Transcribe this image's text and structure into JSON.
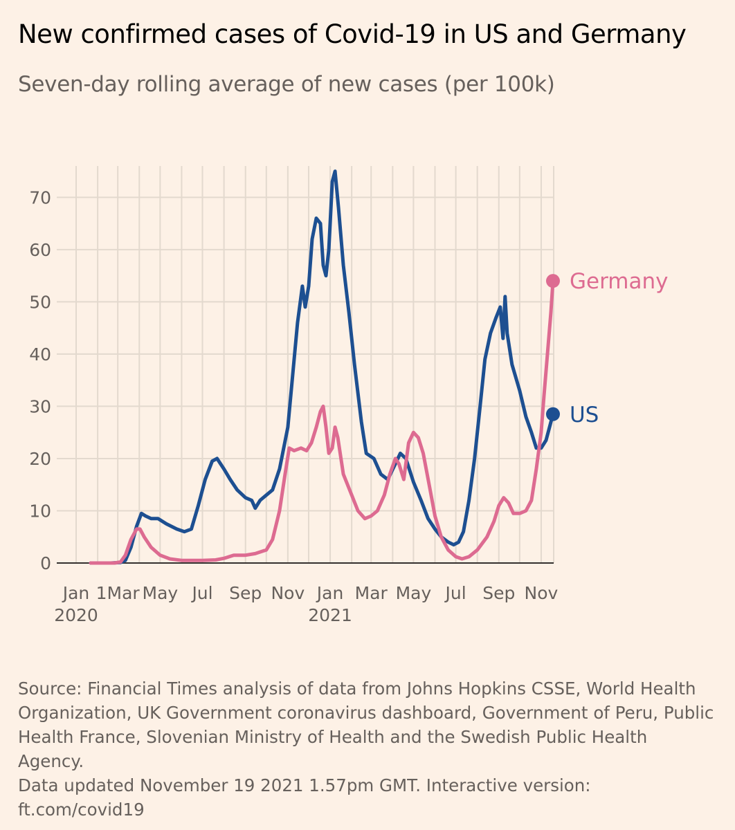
{
  "title": "New confirmed cases of Covid-19 in US and Germany",
  "subtitle": "Seven-day rolling average of new cases (per 100k)",
  "source": "Source: Financial Times analysis of data from Johns Hopkins CSSE, World Health Organization, UK Government coronavirus dashboard, Government of Peru, Public Health France, Slovenian Ministry of Health and the Swedish Public Health Agency.",
  "updated": "Data updated November 19 2021 1.57pm GMT. Interactive version: ft.com/covid19",
  "colors": {
    "background": "#fdf1e6",
    "us": "#1d4f91",
    "germany": "#dd6b91",
    "grid": "#e3d9ce",
    "axis": "#33302e",
    "text": "#66605c"
  },
  "chart_data": {
    "type": "line",
    "title": "New confirmed cases of Covid-19 in US and Germany",
    "subtitle": "Seven-day rolling average of new cases (per 100k)",
    "x_type": "date",
    "xlim": [
      "2020-01-01",
      "2021-11-19"
    ],
    "ylim": [
      0,
      76
    ],
    "y_ticks": [
      0,
      10,
      20,
      30,
      40,
      50,
      60,
      70
    ],
    "x_ticks": [
      {
        "date": "2020-01-01",
        "label": "Jan",
        "sublabel": "2020"
      },
      {
        "date": "2020-03-01",
        "label": "1Mar"
      },
      {
        "date": "2020-05-01",
        "label": "May"
      },
      {
        "date": "2020-07-01",
        "label": "Jul"
      },
      {
        "date": "2020-09-01",
        "label": "Sep"
      },
      {
        "date": "2020-11-01",
        "label": "Nov"
      },
      {
        "date": "2021-01-01",
        "label": "Jan",
        "sublabel": "2021"
      },
      {
        "date": "2021-03-01",
        "label": "Mar"
      },
      {
        "date": "2021-05-01",
        "label": "May"
      },
      {
        "date": "2021-07-01",
        "label": "Jul"
      },
      {
        "date": "2021-09-01",
        "label": "Sep"
      },
      {
        "date": "2021-11-01",
        "label": "Nov"
      }
    ],
    "grid": true,
    "series": [
      {
        "name": "US",
        "color": "#1d4f91",
        "points": [
          [
            "2020-01-22",
            0
          ],
          [
            "2020-02-20",
            0
          ],
          [
            "2020-03-05",
            0.1
          ],
          [
            "2020-03-12",
            0.5
          ],
          [
            "2020-03-20",
            3
          ],
          [
            "2020-03-28",
            7
          ],
          [
            "2020-04-04",
            9.5
          ],
          [
            "2020-04-10",
            9
          ],
          [
            "2020-04-18",
            8.5
          ],
          [
            "2020-04-28",
            8.5
          ],
          [
            "2020-05-10",
            7.5
          ],
          [
            "2020-05-25",
            6.5
          ],
          [
            "2020-06-05",
            6
          ],
          [
            "2020-06-15",
            6.5
          ],
          [
            "2020-06-25",
            11
          ],
          [
            "2020-07-05",
            16
          ],
          [
            "2020-07-15",
            19.5
          ],
          [
            "2020-07-22",
            20
          ],
          [
            "2020-08-01",
            18
          ],
          [
            "2020-08-10",
            16
          ],
          [
            "2020-08-20",
            14
          ],
          [
            "2020-09-01",
            12.5
          ],
          [
            "2020-09-10",
            12
          ],
          [
            "2020-09-15",
            10.5
          ],
          [
            "2020-09-22",
            12
          ],
          [
            "2020-10-01",
            13
          ],
          [
            "2020-10-10",
            14
          ],
          [
            "2020-10-20",
            18
          ],
          [
            "2020-11-01",
            26
          ],
          [
            "2020-11-08",
            36
          ],
          [
            "2020-11-15",
            46
          ],
          [
            "2020-11-22",
            53
          ],
          [
            "2020-11-26",
            49
          ],
          [
            "2020-12-01",
            53
          ],
          [
            "2020-12-06",
            62
          ],
          [
            "2020-12-12",
            66
          ],
          [
            "2020-12-18",
            65
          ],
          [
            "2020-12-22",
            57
          ],
          [
            "2020-12-26",
            55
          ],
          [
            "2020-12-30",
            60
          ],
          [
            "2021-01-04",
            73
          ],
          [
            "2021-01-08",
            75
          ],
          [
            "2021-01-13",
            68
          ],
          [
            "2021-01-20",
            57
          ],
          [
            "2021-01-28",
            48
          ],
          [
            "2021-02-05",
            38
          ],
          [
            "2021-02-15",
            27
          ],
          [
            "2021-02-22",
            21
          ],
          [
            "2021-03-05",
            20
          ],
          [
            "2021-03-15",
            17
          ],
          [
            "2021-03-25",
            16
          ],
          [
            "2021-04-05",
            19
          ],
          [
            "2021-04-12",
            21
          ],
          [
            "2021-04-20",
            20
          ],
          [
            "2021-05-01",
            15.5
          ],
          [
            "2021-05-12",
            12
          ],
          [
            "2021-05-22",
            8.5
          ],
          [
            "2021-06-01",
            6.5
          ],
          [
            "2021-06-10",
            5
          ],
          [
            "2021-06-20",
            4
          ],
          [
            "2021-06-28",
            3.5
          ],
          [
            "2021-07-05",
            4
          ],
          [
            "2021-07-12",
            6
          ],
          [
            "2021-07-20",
            12
          ],
          [
            "2021-07-28",
            20
          ],
          [
            "2021-08-05",
            30
          ],
          [
            "2021-08-12",
            39
          ],
          [
            "2021-08-20",
            44
          ],
          [
            "2021-08-28",
            47
          ],
          [
            "2021-09-03",
            49
          ],
          [
            "2021-09-07",
            43
          ],
          [
            "2021-09-10",
            51
          ],
          [
            "2021-09-13",
            44
          ],
          [
            "2021-09-20",
            38
          ],
          [
            "2021-10-01",
            33
          ],
          [
            "2021-10-10",
            28
          ],
          [
            "2021-10-18",
            25
          ],
          [
            "2021-10-25",
            22
          ],
          [
            "2021-11-01",
            22
          ],
          [
            "2021-11-08",
            23.5
          ],
          [
            "2021-11-18",
            28.5
          ]
        ]
      },
      {
        "name": "Germany",
        "color": "#dd6b91",
        "points": [
          [
            "2020-01-22",
            0
          ],
          [
            "2020-02-25",
            0
          ],
          [
            "2020-03-05",
            0.2
          ],
          [
            "2020-03-12",
            1.5
          ],
          [
            "2020-03-20",
            4.5
          ],
          [
            "2020-03-28",
            6.5
          ],
          [
            "2020-04-02",
            6.5
          ],
          [
            "2020-04-08",
            5
          ],
          [
            "2020-04-18",
            3
          ],
          [
            "2020-05-01",
            1.5
          ],
          [
            "2020-05-15",
            0.8
          ],
          [
            "2020-06-01",
            0.5
          ],
          [
            "2020-06-15",
            0.5
          ],
          [
            "2020-07-01",
            0.5
          ],
          [
            "2020-07-20",
            0.6
          ],
          [
            "2020-08-01",
            0.9
          ],
          [
            "2020-08-15",
            1.5
          ],
          [
            "2020-09-01",
            1.5
          ],
          [
            "2020-09-15",
            1.8
          ],
          [
            "2020-10-01",
            2.5
          ],
          [
            "2020-10-10",
            4.5
          ],
          [
            "2020-10-20",
            10
          ],
          [
            "2020-10-28",
            17
          ],
          [
            "2020-11-03",
            22
          ],
          [
            "2020-11-10",
            21.5
          ],
          [
            "2020-11-20",
            22
          ],
          [
            "2020-11-28",
            21.5
          ],
          [
            "2020-12-05",
            23
          ],
          [
            "2020-12-12",
            26
          ],
          [
            "2020-12-18",
            29
          ],
          [
            "2020-12-22",
            30
          ],
          [
            "2020-12-26",
            26
          ],
          [
            "2020-12-30",
            21
          ],
          [
            "2021-01-04",
            22
          ],
          [
            "2021-01-08",
            26
          ],
          [
            "2021-01-12",
            24
          ],
          [
            "2021-01-20",
            17
          ],
          [
            "2021-02-01",
            13
          ],
          [
            "2021-02-10",
            10
          ],
          [
            "2021-02-20",
            8.5
          ],
          [
            "2021-03-01",
            9
          ],
          [
            "2021-03-10",
            10
          ],
          [
            "2021-03-20",
            13
          ],
          [
            "2021-03-28",
            17
          ],
          [
            "2021-04-05",
            20
          ],
          [
            "2021-04-10",
            19
          ],
          [
            "2021-04-17",
            16
          ],
          [
            "2021-04-24",
            23
          ],
          [
            "2021-05-01",
            25
          ],
          [
            "2021-05-08",
            24
          ],
          [
            "2021-05-15",
            21
          ],
          [
            "2021-05-25",
            14
          ],
          [
            "2021-06-01",
            9
          ],
          [
            "2021-06-10",
            5
          ],
          [
            "2021-06-20",
            2.5
          ],
          [
            "2021-07-01",
            1.2
          ],
          [
            "2021-07-10",
            0.8
          ],
          [
            "2021-07-20",
            1.2
          ],
          [
            "2021-08-01",
            2.5
          ],
          [
            "2021-08-15",
            5
          ],
          [
            "2021-08-25",
            8
          ],
          [
            "2021-09-01",
            11
          ],
          [
            "2021-09-08",
            12.5
          ],
          [
            "2021-09-15",
            11.5
          ],
          [
            "2021-09-22",
            9.5
          ],
          [
            "2021-10-01",
            9.5
          ],
          [
            "2021-10-10",
            10
          ],
          [
            "2021-10-18",
            12
          ],
          [
            "2021-10-25",
            18
          ],
          [
            "2021-11-01",
            25
          ],
          [
            "2021-11-05",
            32
          ],
          [
            "2021-11-10",
            40
          ],
          [
            "2021-11-15",
            48
          ],
          [
            "2021-11-18",
            54
          ]
        ]
      }
    ]
  }
}
